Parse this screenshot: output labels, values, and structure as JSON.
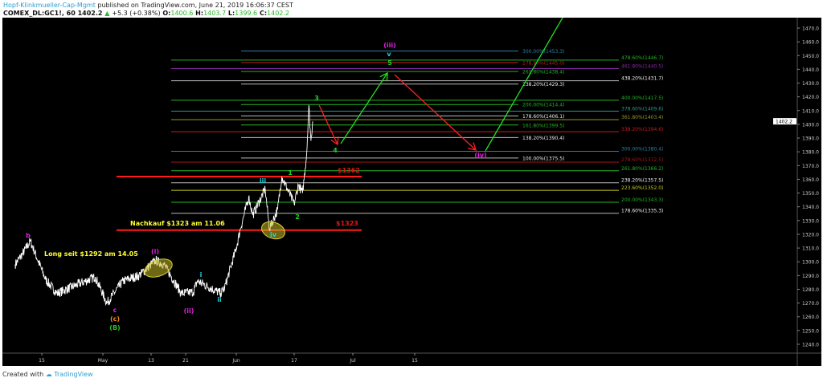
{
  "header": {
    "author": "Hopf-Klinkmueller-Cap-Mgmt",
    "published": "published on TradingView.com, June 21, 2019 16:06:37 CEST",
    "symbol": "COMEX_DL:GC1!, 60",
    "last": "1402.2",
    "change": "+5.3 (+0.38%)",
    "open_label": "O:",
    "open": "1400.6",
    "high_label": "H:",
    "high": "1403.7",
    "low_label": "L:",
    "low": "1399.6",
    "close_label": "C:",
    "close": "1402.2"
  },
  "footer": {
    "created_with": "Created with",
    "brand": "TradingView"
  },
  "colors": {
    "background": "#000000",
    "price": "#ffffff",
    "support": "#ff1a1a",
    "annotation": "#ffff33"
  },
  "chart_data": {
    "type": "line",
    "symbol": "COMEX_DL:GC1!",
    "interval": "60",
    "ylim": [
      1235,
      1475
    ],
    "yticks": [
      1470,
      1460,
      1450,
      1440,
      1430,
      1420,
      1410,
      1400,
      1390,
      1380,
      1370,
      1360,
      1350,
      1340,
      1330,
      1320,
      1310,
      1300,
      1290,
      1280,
      1270,
      1260,
      1250,
      1240
    ],
    "ytick_labels": [
      "1470.0",
      "1460.0",
      "1450.0",
      "1440.0",
      "1430.0",
      "1420.0",
      "1410.0",
      "1400.0",
      "1390.0",
      "1380.0",
      "1370.0",
      "1360.0",
      "1350.0",
      "1340.0",
      "1330.0",
      "1320.0",
      "1310.0",
      "1300.0",
      "1290.0",
      "1280.0",
      "1270.0",
      "1260.0",
      "1250.0",
      "1240.0"
    ],
    "xtick_labels": [
      "15",
      "May",
      "13",
      "21",
      "Jun",
      "17",
      "Jul",
      "15"
    ],
    "xtick_dates": [
      "2019-04-15",
      "2019-05-01",
      "2019-05-13",
      "2019-05-21",
      "2019-06-03",
      "2019-06-17",
      "2019-07-01",
      "2019-07-15"
    ],
    "last_price_label": "1402.2",
    "last_price": 1402.2,
    "price_path": [
      [
        "2019-04-08",
        1298
      ],
      [
        "2019-04-10",
        1306
      ],
      [
        "2019-04-12",
        1315
      ],
      [
        "2019-04-16",
        1287
      ],
      [
        "2019-04-19",
        1277
      ],
      [
        "2019-04-24",
        1283
      ],
      [
        "2019-04-29",
        1289
      ],
      [
        "2019-05-02",
        1270
      ],
      [
        "2019-05-06",
        1286
      ],
      [
        "2019-05-10",
        1290
      ],
      [
        "2019-05-14",
        1301
      ],
      [
        "2019-05-16",
        1298
      ],
      [
        "2019-05-20",
        1277
      ],
      [
        "2019-05-23",
        1278
      ],
      [
        "2019-05-24",
        1286
      ],
      [
        "2019-05-30",
        1277
      ],
      [
        "2019-05-31",
        1281
      ],
      [
        "2019-06-03",
        1310
      ],
      [
        "2019-06-04",
        1324
      ],
      [
        "2019-06-06",
        1347
      ],
      [
        "2019-06-07",
        1334
      ],
      [
        "2019-06-10",
        1353
      ],
      [
        "2019-06-11",
        1324
      ],
      [
        "2019-06-13",
        1338
      ],
      [
        "2019-06-14",
        1362
      ],
      [
        "2019-06-17",
        1342
      ],
      [
        "2019-06-18",
        1356
      ],
      [
        "2019-06-19",
        1350
      ],
      [
        "2019-06-20",
        1379
      ],
      [
        "2019-06-20T12",
        1414
      ],
      [
        "2019-06-21",
        1388
      ],
      [
        "2019-06-21T10",
        1402.2
      ]
    ],
    "support_lines": [
      {
        "price": 1362,
        "label": "$1362"
      },
      {
        "price": 1323,
        "label": "$1323"
      }
    ],
    "fib_left": [
      {
        "label": "300.00%(1453.3)",
        "price": 1453.3,
        "color": "#2f7fa8"
      },
      {
        "label": "278.60%(1445.0)",
        "price": 1445.0,
        "color": "#c81e1e"
      },
      {
        "label": "261.80%(1438.4)",
        "price": 1438.4,
        "color": "#22b422"
      },
      {
        "label": "238.20%(1429.3)",
        "price": 1429.3,
        "color": "#b8b8b8"
      },
      {
        "label": "200.00%(1414.4)",
        "price": 1414.4,
        "color": "#22b422"
      },
      {
        "label": "178.60%(1406.1)",
        "price": 1406.1,
        "color": "#b8b8b8"
      },
      {
        "label": "161.80%(1399.5)",
        "price": 1399.5,
        "color": "#22b422"
      },
      {
        "label": "138.20%(1390.4)",
        "price": 1390.4,
        "color": "#b8b8b8"
      },
      {
        "label": "100.00%(1375.5)",
        "price": 1375.5,
        "color": "#b8b8b8"
      }
    ],
    "fib_right": [
      {
        "label": "478.60%(1446.7)",
        "price": 1446.7,
        "color": "#22b422"
      },
      {
        "label": "461.80%(1440.5)",
        "price": 1440.5,
        "color": "#8a2aa8"
      },
      {
        "label": "438.20%(1431.7)",
        "price": 1431.7,
        "color": "#b8b8b8"
      },
      {
        "label": "400.00%(1417.5)",
        "price": 1417.5,
        "color": "#22b422"
      },
      {
        "label": "378.60%(1409.6)",
        "price": 1409.6,
        "color": "#2a9a8a"
      },
      {
        "label": "361.80%(1403.4)",
        "price": 1403.4,
        "color": "#9a9a22"
      },
      {
        "label": "338.20%(1394.6)",
        "price": 1394.6,
        "color": "#c81e1e"
      },
      {
        "label": "300.00%(1380.4)",
        "price": 1380.4,
        "color": "#2f7fa8"
      },
      {
        "label": "278.60%(1372.5)",
        "price": 1372.5,
        "color": "#a81414"
      },
      {
        "label": "261.80%(1366.2)",
        "price": 1366.2,
        "color": "#22b422"
      },
      {
        "label": "238.20%(1357.5)",
        "price": 1357.5,
        "color": "#b8b8b8"
      },
      {
        "label": "223.60%(1352.0)",
        "price": 1352.0,
        "color": "#c8c81e"
      },
      {
        "label": "200.00%(1343.3)",
        "price": 1343.3,
        "color": "#22b422"
      },
      {
        "label": "178.60%(1335.3)",
        "price": 1335.3,
        "color": "#b8b8b8"
      }
    ],
    "annotations": [
      {
        "text": "Long seit $1292 am 14.05",
        "color": "#ffff33"
      },
      {
        "text": "Nachkauf $1323 am 11.06",
        "color": "#ffff33"
      }
    ],
    "wave_labels": [
      {
        "text": "b",
        "color": "#e020e0"
      },
      {
        "text": "c",
        "color": "#e020e0"
      },
      {
        "text": "(c)",
        "color": "#f08a1e"
      },
      {
        "text": "(B)",
        "color": "#22c422"
      },
      {
        "text": "(i)",
        "color": "#e020e0"
      },
      {
        "text": "(ii)",
        "color": "#e020e0"
      },
      {
        "text": "i",
        "color": "#20d0e0"
      },
      {
        "text": "ii",
        "color": "#20d0e0"
      },
      {
        "text": "iii",
        "color": "#20d0e0"
      },
      {
        "text": "iv",
        "color": "#20d0e0"
      },
      {
        "text": "1",
        "color": "#22d422"
      },
      {
        "text": "2",
        "color": "#22d422"
      },
      {
        "text": "3",
        "color": "#22d422"
      },
      {
        "text": "4",
        "color": "#22d422"
      },
      {
        "text": "(iii)",
        "color": "#e020e0"
      },
      {
        "text": "v",
        "color": "#20d0e0"
      },
      {
        "text": "5",
        "color": "#22d422"
      },
      {
        "text": "(iv)",
        "color": "#e020e0"
      }
    ]
  }
}
